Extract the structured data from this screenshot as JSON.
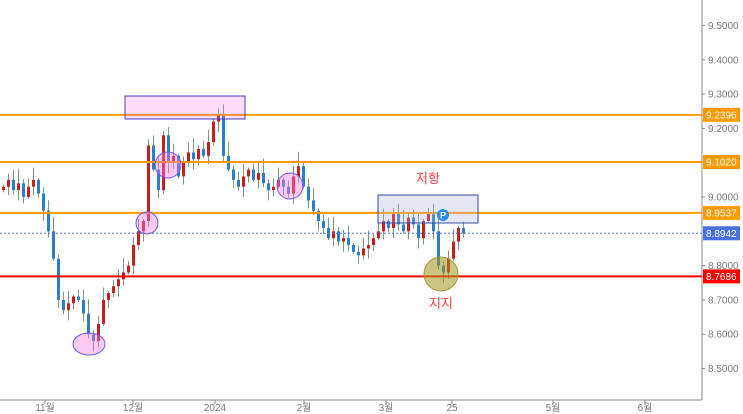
{
  "chart_data": {
    "type": "candlestick",
    "title": "",
    "xlabel": "",
    "ylabel": "",
    "ylim": [
      8.42,
      9.57
    ],
    "grid": false,
    "y_ticks": [
      "9.5000",
      "9.4000",
      "9.3000",
      "9.2000",
      "9.0000",
      "8.8000",
      "8.7000",
      "8.6000",
      "8.5000"
    ],
    "x_ticks": [
      "11월",
      "12월",
      "2024",
      "2월",
      "3월",
      "25",
      "5월",
      "6월"
    ],
    "up_color": "#c81e1e",
    "down_color": "#2a7fc8",
    "close": [
      9.03,
      9.05,
      9.02,
      9.04,
      9.0,
      9.03,
      9.05,
      9.01,
      8.96,
      8.9,
      8.82,
      8.7,
      8.67,
      8.69,
      8.71,
      8.7,
      8.66,
      8.6,
      8.58,
      8.63,
      8.7,
      8.72,
      8.74,
      8.76,
      8.78,
      8.8,
      8.86,
      8.9,
      8.93,
      9.15,
      9.08,
      9.02,
      9.18,
      9.1,
      9.12,
      9.06,
      9.1,
      9.13,
      9.11,
      9.14,
      9.12,
      9.16,
      9.22,
      9.24,
      9.12,
      9.08,
      9.05,
      9.03,
      9.06,
      9.08,
      9.05,
      9.07,
      9.04,
      9.02,
      9.03,
      9.05,
      9.03,
      9.01,
      9.06,
      9.09,
      9.03,
      8.99,
      8.96,
      8.93,
      8.91,
      8.88,
      8.9,
      8.87,
      8.88,
      8.86,
      8.84,
      8.83,
      8.85,
      8.86,
      8.88,
      8.9,
      8.93,
      8.91,
      8.95,
      8.92,
      8.9,
      8.94,
      8.92,
      8.88,
      8.93,
      8.95,
      8.9,
      8.8,
      8.78,
      8.82,
      8.87,
      8.91,
      8.8942
    ],
    "levels": [
      {
        "label": "9.2396",
        "value": 9.2396,
        "color": "#ff9900",
        "style": "solid"
      },
      {
        "label": "9.1020",
        "value": 9.102,
        "color": "#ff9900",
        "style": "solid"
      },
      {
        "label": "8.9537",
        "value": 8.9537,
        "color": "#ff9900",
        "style": "solid"
      },
      {
        "label": "8.8942",
        "value": 8.8942,
        "color": "#4a6fe0",
        "style": "dotted"
      },
      {
        "label": "8.7686",
        "value": 8.7686,
        "color": "#ff0000",
        "style": "solid"
      }
    ],
    "annotations": {
      "resistance": "저항",
      "support": "지지",
      "marker": "P"
    }
  }
}
